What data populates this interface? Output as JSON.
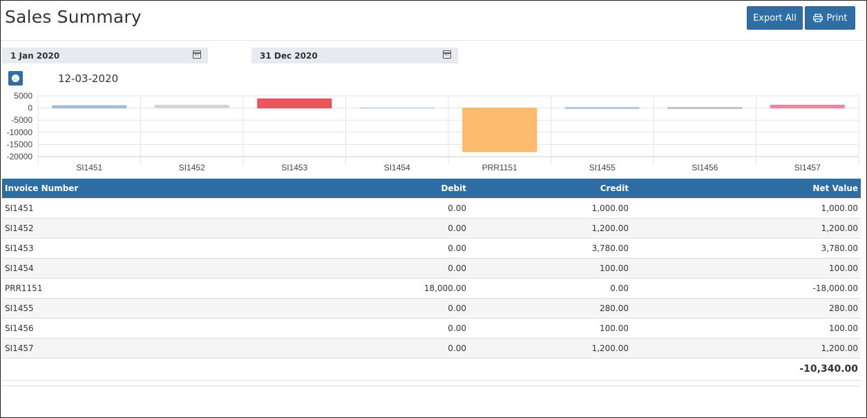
{
  "page": {
    "title": "Sales Summary"
  },
  "toolbar": {
    "export_label": "Export All",
    "print_label": "Print"
  },
  "filters": {
    "from_date": "1 Jan 2020",
    "to_date": "31 Dec 2020"
  },
  "drill": {
    "selected_date": "12-03-2020"
  },
  "colors": {
    "accent": "#2f6ea5",
    "header_bg": "#2e6da4"
  },
  "table": {
    "headers": {
      "invoice": "Invoice Number",
      "debit": "Debit",
      "credit": "Credit",
      "net": "Net Value"
    },
    "rows": [
      {
        "invoice": "SI1451",
        "debit": "0.00",
        "credit": "1,000.00",
        "net": "1,000.00"
      },
      {
        "invoice": "SI1452",
        "debit": "0.00",
        "credit": "1,200.00",
        "net": "1,200.00"
      },
      {
        "invoice": "SI1453",
        "debit": "0.00",
        "credit": "3,780.00",
        "net": "3,780.00"
      },
      {
        "invoice": "SI1454",
        "debit": "0.00",
        "credit": "100.00",
        "net": "100.00"
      },
      {
        "invoice": "PRR1151",
        "debit": "18,000.00",
        "credit": "0.00",
        "net": "-18,000.00"
      },
      {
        "invoice": "SI1455",
        "debit": "0.00",
        "credit": "280.00",
        "net": "280.00"
      },
      {
        "invoice": "SI1456",
        "debit": "0.00",
        "credit": "100.00",
        "net": "100.00"
      },
      {
        "invoice": "SI1457",
        "debit": "0.00",
        "credit": "1,200.00",
        "net": "1,200.00"
      }
    ],
    "total": "-10,340.00"
  },
  "chart_data": {
    "type": "bar",
    "categories": [
      "SI1451",
      "SI1452",
      "SI1453",
      "SI1454",
      "PRR1151",
      "SI1455",
      "SI1456",
      "SI1457"
    ],
    "values": [
      1000,
      1200,
      3780,
      100,
      -18000,
      280,
      100,
      1200
    ],
    "colors": [
      "#9bb8cf",
      "#d3d3d3",
      "#e9434b",
      "#cfe3ea",
      "#fdb461",
      "#b8c5dd",
      "#c0c0c0",
      "#eb7a98"
    ],
    "yticks": [
      5000,
      0,
      -5000,
      -10000,
      -15000,
      -20000
    ],
    "ylim": [
      -20000,
      5000
    ],
    "grid": true,
    "title": "",
    "xlabel": "",
    "ylabel": ""
  }
}
